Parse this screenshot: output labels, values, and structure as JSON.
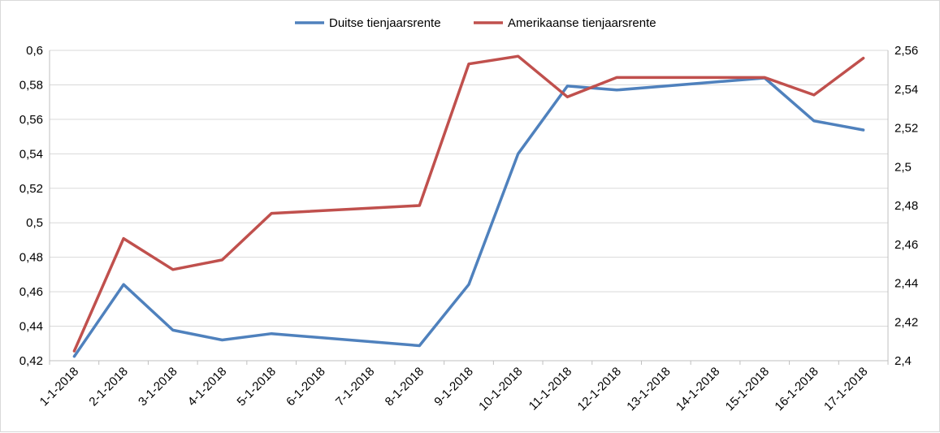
{
  "chart_data": {
    "type": "line",
    "categories": [
      "1-1-2018",
      "2-1-2018",
      "3-1-2018",
      "4-1-2018",
      "5-1-2018",
      "6-1-2018",
      "7-1-2018",
      "8-1-2018",
      "9-1-2018",
      "10-1-2018",
      "11-1-2018",
      "12-1-2018",
      "13-1-2018",
      "14-1-2018",
      "15-1-2018",
      "16-1-2018",
      "17-1-2018"
    ],
    "series": [
      {
        "name": "Duitse tienjaarsrente",
        "axis": "left",
        "color": "#4f81bd",
        "values": [
          0.4225,
          0.4642,
          0.4377,
          0.432,
          0.4357,
          null,
          null,
          0.4287,
          0.4642,
          0.54,
          0.5793,
          0.577,
          null,
          null,
          0.584,
          0.5591,
          0.5538
        ]
      },
      {
        "name": "Amerikaanse tienjaarsrente",
        "axis": "right",
        "color": "#c0504d",
        "values": [
          2.405,
          2.463,
          2.447,
          2.452,
          2.476,
          null,
          null,
          2.48,
          2.553,
          2.557,
          2.536,
          2.546,
          null,
          null,
          2.546,
          2.537,
          2.556
        ]
      }
    ],
    "yaxis_left": {
      "min": 0.42,
      "max": 0.6,
      "ticks": [
        "0,42",
        "0,44",
        "0,46",
        "0,48",
        "0,5",
        "0,52",
        "0,54",
        "0,56",
        "0,58",
        "0,6"
      ]
    },
    "yaxis_right": {
      "min": 2.4,
      "max": 2.56,
      "ticks": [
        "2,4",
        "2,42",
        "2,44",
        "2,46",
        "2,48",
        "2,5",
        "2,52",
        "2,54",
        "2,56"
      ]
    },
    "grid": true,
    "legend_position": "top-center"
  }
}
